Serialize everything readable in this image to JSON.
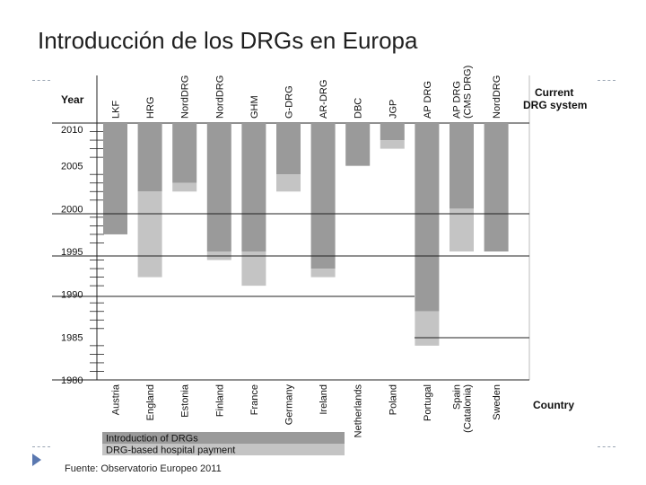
{
  "slide": {
    "title": "Introducción de los DRGs en Europa",
    "source": "Fuente: Observatorio Europeo 2011"
  },
  "chart_data": {
    "type": "bar",
    "orientation": "vertical-downward",
    "year_label": "Year",
    "current_system_label": [
      "Current",
      "DRG system"
    ],
    "country_label": "Country",
    "y_ticks": [
      2010,
      2005,
      2000,
      1995,
      1990,
      1985,
      1980
    ],
    "ylim": [
      1980,
      2010
    ],
    "colors": {
      "introduction": "#9a9a9a",
      "payment": "#c4c4c4"
    },
    "legend": [
      {
        "key": "introduction",
        "label": "Introduction of DRGs"
      },
      {
        "key": "payment",
        "label": "DRG-based hospital payment"
      }
    ],
    "countries": [
      {
        "country": "Austria",
        "system": "LKF",
        "introduction": 1997,
        "payment": 1997
      },
      {
        "country": "England",
        "system": "HRG",
        "introduction": 2002,
        "payment": 1992
      },
      {
        "country": "Estonia",
        "system": "NordDRG",
        "introduction": 2003,
        "payment": 2002
      },
      {
        "country": "Finland",
        "system": "NordDRG",
        "introduction": 1995,
        "payment": 1994
      },
      {
        "country": "France",
        "system": "GHM",
        "introduction": 1995,
        "payment": 1991
      },
      {
        "country": "Germany",
        "system": "G-DRG",
        "introduction": 2004,
        "payment": 2002
      },
      {
        "country": "Ireland",
        "system": "AR-DRG",
        "introduction": 1993,
        "payment": 1992
      },
      {
        "country": "Netherlands",
        "system": "DBC",
        "introduction": 2005,
        "payment": 2005
      },
      {
        "country": "Poland",
        "system": "JGP",
        "introduction": 2008,
        "payment": 2007
      },
      {
        "country": "Portugal",
        "system": "AP DRG",
        "introduction": 1988,
        "payment": 1984
      },
      {
        "country": "Spain\n(Catalonia)",
        "system": "AP DRG\n(CMS DRG)",
        "introduction": 2000,
        "payment": 1995
      },
      {
        "country": "Sweden",
        "system": "NordDRG",
        "introduction": 1995,
        "payment": 1995
      }
    ]
  }
}
